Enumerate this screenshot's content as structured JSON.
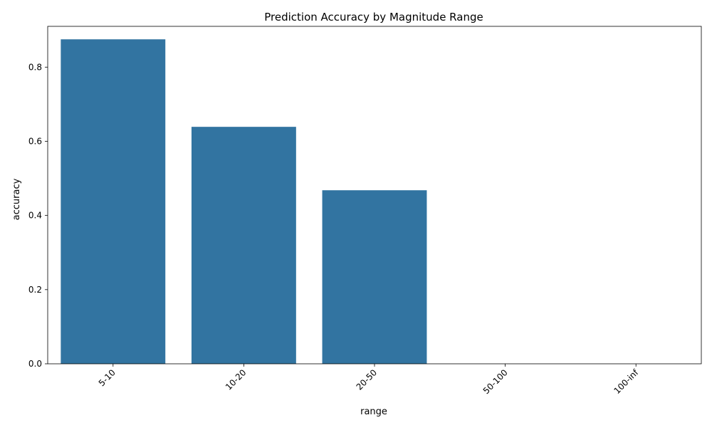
{
  "chart_data": {
    "type": "bar",
    "title": "Prediction Accuracy by Magnitude Range",
    "xlabel": "range",
    "ylabel": "accuracy",
    "categories": [
      "5-10",
      "10-20",
      "20-50",
      "50-100",
      "100-inf"
    ],
    "values": [
      0.875,
      0.639,
      0.468,
      0.0,
      0.0
    ],
    "ylim": [
      0,
      0.91
    ],
    "yticks": [
      "0.0",
      "0.2",
      "0.4",
      "0.6",
      "0.8"
    ],
    "ytick_values": [
      0,
      0.2,
      0.4,
      0.6,
      0.8
    ],
    "x_tick_rotation_deg": 45,
    "grid": false,
    "legend": "none",
    "bar_color": "#3274a1"
  }
}
